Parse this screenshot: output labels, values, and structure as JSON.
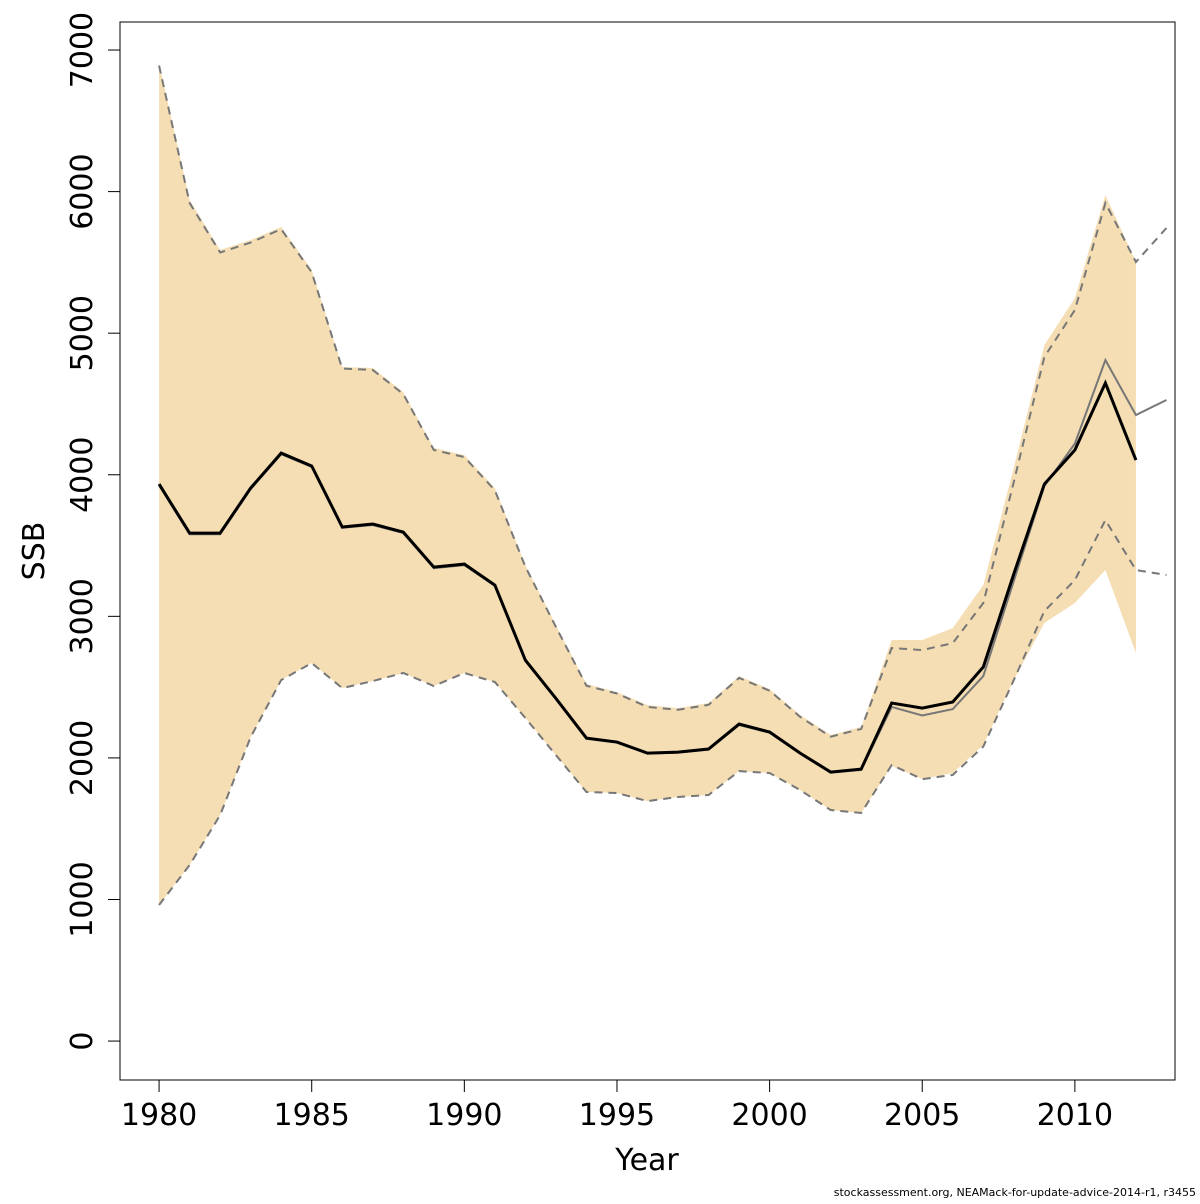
{
  "chart_data": {
    "type": "line",
    "xlabel": "Year",
    "ylabel": "SSB",
    "footnote": "stockassessment.org, NEAMack-for-update-advice-2014-r1, r3455",
    "xlim": [
      1978.72,
      2013.28
    ],
    "ylim": [
      -275,
      7198
    ],
    "xticks": [
      1980,
      1985,
      1990,
      1995,
      2000,
      2005,
      2010
    ],
    "yticks": [
      0,
      1000,
      2000,
      3000,
      4000,
      5000,
      6000,
      7000
    ],
    "x": [
      1980,
      1981,
      1982,
      1983,
      1984,
      1985,
      1986,
      1987,
      1988,
      1989,
      1990,
      1991,
      1992,
      1993,
      1994,
      1995,
      1996,
      1997,
      1998,
      1999,
      2000,
      2001,
      2002,
      2003,
      2004,
      2005,
      2006,
      2007,
      2008,
      2009,
      2010,
      2011,
      2012,
      2013
    ],
    "band": {
      "color": "#f5deb3",
      "upper": [
        6908,
        5940,
        5588,
        5658,
        5750,
        5446,
        4761,
        4754,
        4584,
        4189,
        4139,
        3906,
        3362,
        2938,
        2522,
        2465,
        2373,
        2352,
        2388,
        2578,
        2486,
        2303,
        2162,
        2218,
        2833,
        2833,
        2917,
        3221,
        4050,
        4916,
        5248,
        5976,
        5503,
        null
      ],
      "lower": [
        961,
        1243,
        1596,
        2147,
        2550,
        2670,
        2493,
        2543,
        2600,
        2508,
        2600,
        2536,
        2282,
        2020,
        1759,
        1752,
        1695,
        1724,
        1738,
        1907,
        1893,
        1773,
        1632,
        1611,
        1943,
        1851,
        1893,
        2091,
        2550,
        2953,
        3094,
        3327,
        2741,
        null
      ]
    },
    "series": [
      {
        "color": "#777777",
        "dash": true,
        "width": 2,
        "values": [
          6890,
          5920,
          5570,
          5640,
          5735,
          5430,
          4750,
          4740,
          4570,
          4175,
          4125,
          3890,
          3350,
          2925,
          2510,
          2455,
          2360,
          2340,
          2375,
          2565,
          2475,
          2290,
          2150,
          2205,
          2776,
          2762,
          2811,
          3094,
          3950,
          4832,
          5164,
          5920,
          5503,
          5743
        ]
      },
      {
        "color": "#777777",
        "dash": true,
        "width": 2,
        "values": [
          961,
          1243,
          1596,
          2147,
          2550,
          2670,
          2493,
          2543,
          2600,
          2508,
          2600,
          2536,
          2282,
          2020,
          1759,
          1752,
          1695,
          1724,
          1738,
          1907,
          1893,
          1773,
          1632,
          1611,
          1950,
          1850,
          1880,
          2080,
          2550,
          3037,
          3256,
          3680,
          3327,
          3292
        ]
      },
      {
        "color": "#777777",
        "dash": false,
        "width": 2,
        "values": [
          3925,
          3580,
          3580,
          3898,
          4145,
          4055,
          3625,
          3645,
          3588,
          3340,
          3362,
          3214,
          2685,
          2415,
          2135,
          2108,
          2030,
          2037,
          2058,
          2232,
          2178,
          2030,
          1895,
          1915,
          2360,
          2300,
          2345,
          2578,
          3250,
          3920,
          4220,
          4810,
          4422,
          4528
        ]
      },
      {
        "color": "#000000",
        "dash": false,
        "width": 3,
        "values": [
          3934,
          3588,
          3588,
          3906,
          4153,
          4062,
          3631,
          3652,
          3595,
          3348,
          3369,
          3221,
          2690,
          2420,
          2140,
          2112,
          2034,
          2041,
          2063,
          2239,
          2183,
          2034,
          1900,
          1921,
          2388,
          2352,
          2395,
          2642,
          3300,
          3934,
          4175,
          4648,
          4104,
          null
        ]
      }
    ]
  }
}
